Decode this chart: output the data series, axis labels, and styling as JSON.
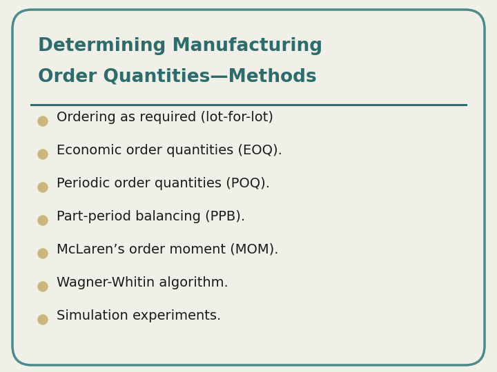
{
  "title_line1": "Determining Manufacturing",
  "title_line2": "Order Quantities—Methods",
  "title_color": "#2e6b6b",
  "bullet_color": "#c8b97a",
  "text_color": "#1a1a1a",
  "background_color": "#f0f0e8",
  "border_color": "#4a8a8a",
  "divider_color": "#2e6b6b",
  "bullets": [
    "Ordering as required (lot-for-lot)",
    "Economic order quantities (EOQ).",
    "Periodic order quantities (POQ).",
    "Part-period balancing (PPB).",
    "McLaren’s order moment (MOM).",
    "Wagner-Whitin algorithm.",
    "Simulation experiments."
  ],
  "title_fontsize": 19,
  "bullet_fontsize": 14,
  "figsize": [
    7.2,
    5.4
  ],
  "dpi": 100
}
